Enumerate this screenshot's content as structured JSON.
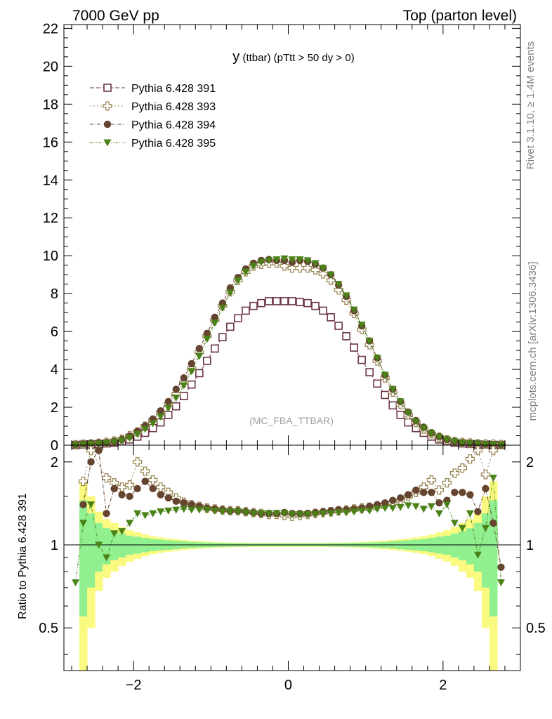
{
  "header": {
    "left_title": "7000 GeV pp",
    "right_title": "Top (parton level)"
  },
  "chart_data": [
    {
      "type": "scatter",
      "title": "y (ttbar) (pTtt > 50 dy > 0)",
      "title_main": "y",
      "title_rest": " (ttbar) (pTtt > 50 dy > 0)",
      "watermark": "(MC_FBA_TTBAR)",
      "xlim": [
        -2.9,
        3.0
      ],
      "ylim": [
        0,
        22.2
      ],
      "yticks": [
        0,
        2,
        4,
        6,
        8,
        10,
        12,
        14,
        16,
        18,
        20,
        22
      ],
      "legend_position": "top-left",
      "x": [
        -2.75,
        -2.65,
        -2.55,
        -2.45,
        -2.35,
        -2.25,
        -2.15,
        -2.05,
        -1.95,
        -1.85,
        -1.75,
        -1.65,
        -1.55,
        -1.45,
        -1.35,
        -1.25,
        -1.15,
        -1.05,
        -0.95,
        -0.85,
        -0.75,
        -0.65,
        -0.55,
        -0.45,
        -0.35,
        -0.25,
        -0.15,
        -0.05,
        0.05,
        0.15,
        0.25,
        0.35,
        0.45,
        0.55,
        0.65,
        0.75,
        0.85,
        0.95,
        1.05,
        1.15,
        1.25,
        1.35,
        1.45,
        1.55,
        1.65,
        1.75,
        1.85,
        1.95,
        2.05,
        2.15,
        2.25,
        2.35,
        2.45,
        2.55,
        2.65,
        2.75
      ],
      "series": [
        {
          "name": "Pythia 6.428 391",
          "marker": "open-square",
          "color": "#6b3545",
          "values": [
            0.01,
            0.03,
            0.04,
            0.06,
            0.09,
            0.13,
            0.2,
            0.3,
            0.45,
            0.65,
            0.9,
            1.2,
            1.6,
            2.05,
            2.6,
            3.2,
            3.8,
            4.45,
            5.1,
            5.7,
            6.25,
            6.7,
            7.1,
            7.35,
            7.5,
            7.6,
            7.6,
            7.6,
            7.6,
            7.55,
            7.5,
            7.35,
            7.1,
            6.75,
            6.3,
            5.75,
            5.15,
            4.5,
            3.85,
            3.25,
            2.65,
            2.1,
            1.6,
            1.2,
            0.9,
            0.65,
            0.45,
            0.3,
            0.2,
            0.13,
            0.09,
            0.06,
            0.04,
            0.03,
            0.02,
            0.01
          ]
        },
        {
          "name": "Pythia 6.428 393",
          "marker": "open-cross",
          "color": "#9a8858",
          "values": [
            0.02,
            0.05,
            0.07,
            0.1,
            0.15,
            0.22,
            0.32,
            0.5,
            0.7,
            1.0,
            1.32,
            1.72,
            2.15,
            2.7,
            3.3,
            4.05,
            4.9,
            5.75,
            6.6,
            7.35,
            8.1,
            8.7,
            9.15,
            9.45,
            9.55,
            9.6,
            9.6,
            9.45,
            9.35,
            9.35,
            9.35,
            9.25,
            9.05,
            8.7,
            8.2,
            7.65,
            6.95,
            6.1,
            5.3,
            4.45,
            3.55,
            2.8,
            2.15,
            1.6,
            1.2,
            0.85,
            0.6,
            0.42,
            0.28,
            0.2,
            0.14,
            0.11,
            0.08,
            0.06,
            0.05,
            0.03
          ]
        },
        {
          "name": "Pythia 6.428 394",
          "marker": "filled-circle",
          "color": "#654430",
          "values": [
            0.02,
            0.06,
            0.09,
            0.12,
            0.14,
            0.2,
            0.31,
            0.48,
            0.74,
            1.02,
            1.38,
            1.81,
            2.3,
            2.95,
            3.55,
            4.3,
            5.1,
            5.9,
            6.75,
            7.5,
            8.3,
            8.85,
            9.3,
            9.6,
            9.75,
            9.8,
            9.75,
            9.75,
            9.65,
            9.75,
            9.7,
            9.55,
            9.35,
            9.0,
            8.45,
            7.85,
            7.1,
            6.3,
            5.5,
            4.6,
            3.7,
            2.95,
            2.3,
            1.75,
            1.3,
            0.95,
            0.65,
            0.45,
            0.3,
            0.2,
            0.13,
            0.1,
            0.07,
            0.05,
            0.03,
            0.02
          ]
        },
        {
          "name": "Pythia 6.428 395",
          "marker": "filled-triangle-down",
          "color": "#4a8218",
          "values": [
            0.01,
            0.04,
            0.06,
            0.08,
            0.11,
            0.17,
            0.25,
            0.38,
            0.58,
            0.85,
            1.15,
            1.5,
            1.95,
            2.5,
            3.15,
            3.9,
            4.7,
            5.6,
            6.45,
            7.25,
            8.05,
            8.7,
            9.15,
            9.45,
            9.65,
            9.75,
            9.8,
            9.85,
            9.8,
            9.8,
            9.75,
            9.6,
            9.35,
            9.0,
            8.5,
            7.9,
            7.15,
            6.35,
            5.5,
            4.6,
            3.7,
            2.95,
            2.3,
            1.7,
            1.25,
            0.9,
            0.62,
            0.43,
            0.29,
            0.19,
            0.13,
            0.09,
            0.06,
            0.04,
            0.03,
            0.01
          ]
        }
      ]
    },
    {
      "type": "scatter",
      "ylabel": "Ratio to Pythia 6.428 391",
      "xlim": [
        -2.9,
        3.0
      ],
      "ylim": [
        0.35,
        2.3
      ],
      "log_y": true,
      "yticks": [
        0.5,
        1,
        2
      ],
      "xticks": [
        -2,
        0,
        2
      ],
      "reference_line": 1,
      "uncertainty_bands": {
        "x_edges": [
          -2.7,
          -2.6,
          -2.5,
          -2.4,
          -2.3,
          -2.2,
          -2.1,
          -2.0,
          -1.9,
          -1.8,
          -1.7,
          -1.6,
          -1.5,
          -1.4,
          -1.3,
          -1.2,
          -1.1,
          -1.0,
          -0.9,
          -0.8,
          -0.7,
          -0.6,
          -0.5,
          -0.4,
          -0.3,
          -0.2,
          -0.1,
          0.0,
          0.1,
          0.2,
          0.3,
          0.4,
          0.5,
          0.6,
          0.7,
          0.8,
          0.9,
          1.0,
          1.1,
          1.2,
          1.3,
          1.4,
          1.5,
          1.6,
          1.7,
          1.8,
          1.9,
          2.0,
          2.1,
          2.2,
          2.3,
          2.4,
          2.5,
          2.6,
          2.7
        ],
        "green_halfwidth": [
          0.45,
          0.3,
          0.2,
          0.15,
          0.12,
          0.1,
          0.08,
          0.07,
          0.06,
          0.05,
          0.045,
          0.04,
          0.035,
          0.03,
          0.025,
          0.022,
          0.02,
          0.018,
          0.016,
          0.015,
          0.014,
          0.013,
          0.012,
          0.012,
          0.012,
          0.012,
          0.012,
          0.012,
          0.012,
          0.012,
          0.012,
          0.012,
          0.013,
          0.014,
          0.015,
          0.016,
          0.018,
          0.02,
          0.022,
          0.025,
          0.03,
          0.035,
          0.04,
          0.045,
          0.05,
          0.06,
          0.07,
          0.08,
          0.1,
          0.12,
          0.15,
          0.2,
          0.3,
          0.45
        ],
        "yellow_halfwidth": [
          0.7,
          0.5,
          0.32,
          0.24,
          0.2,
          0.16,
          0.13,
          0.11,
          0.09,
          0.075,
          0.065,
          0.055,
          0.048,
          0.042,
          0.036,
          0.032,
          0.028,
          0.025,
          0.022,
          0.02,
          0.019,
          0.018,
          0.017,
          0.017,
          0.017,
          0.017,
          0.017,
          0.017,
          0.017,
          0.017,
          0.017,
          0.017,
          0.018,
          0.019,
          0.02,
          0.022,
          0.025,
          0.028,
          0.032,
          0.036,
          0.042,
          0.048,
          0.055,
          0.065,
          0.075,
          0.09,
          0.11,
          0.13,
          0.16,
          0.2,
          0.24,
          0.32,
          0.5,
          0.7
        ],
        "green_color": "#90f090",
        "yellow_color": "#fafa80"
      },
      "series": [
        {
          "name": "Pythia 6.428 393",
          "marker": "open-cross",
          "color": "#9a8858",
          "values": [
            null,
            1.7,
            2.2,
            null,
            1.75,
            1.68,
            1.62,
            1.65,
            2.0,
            1.85,
            1.72,
            1.62,
            1.55,
            1.48,
            1.43,
            1.4,
            1.38,
            1.36,
            1.35,
            1.34,
            1.33,
            1.33,
            1.32,
            1.31,
            1.3,
            1.29,
            1.29,
            1.28,
            1.27,
            1.28,
            1.29,
            1.3,
            1.31,
            1.32,
            1.33,
            1.34,
            1.35,
            1.36,
            1.37,
            1.38,
            1.4,
            1.42,
            1.45,
            1.5,
            1.55,
            1.62,
            1.72,
            1.58,
            1.68,
            1.82,
            1.9,
            2.05,
            2.2,
            1.8,
            2.2,
            null
          ]
        },
        {
          "name": "Pythia 6.428 394",
          "marker": "filled-circle",
          "color": "#654430",
          "values": [
            null,
            1.4,
            2.0,
            2.2,
            1.3,
            1.6,
            1.52,
            1.5,
            1.6,
            1.7,
            1.6,
            1.52,
            1.48,
            1.44,
            1.42,
            1.4,
            1.38,
            1.36,
            1.35,
            1.34,
            1.33,
            1.33,
            1.32,
            1.31,
            1.3,
            1.3,
            1.3,
            1.31,
            1.3,
            1.3,
            1.3,
            1.31,
            1.32,
            1.33,
            1.34,
            1.34,
            1.35,
            1.36,
            1.38,
            1.4,
            1.42,
            1.45,
            1.48,
            1.52,
            1.58,
            1.55,
            1.55,
            1.42,
            1.45,
            1.55,
            1.55,
            1.52,
            1.32,
            1.6,
            1.2,
            0.83
          ]
        },
        {
          "name": "Pythia 6.428 395",
          "marker": "filled-triangle-down",
          "color": "#4a8218",
          "values": [
            0.73,
            1.2,
            1.4,
            1.0,
            0.9,
            1.1,
            1.12,
            1.2,
            1.3,
            1.28,
            1.3,
            1.32,
            1.33,
            1.34,
            1.35,
            1.34,
            1.34,
            1.34,
            1.33,
            1.32,
            1.32,
            1.32,
            1.31,
            1.3,
            1.3,
            1.3,
            1.3,
            1.3,
            1.29,
            1.29,
            1.29,
            1.29,
            1.3,
            1.3,
            1.31,
            1.31,
            1.32,
            1.33,
            1.33,
            1.35,
            1.36,
            1.36,
            1.37,
            1.39,
            1.38,
            1.35,
            1.38,
            1.3,
            1.4,
            1.2,
            1.15,
            1.3,
            0.92,
            1.15,
            1.75,
            0.73
          ]
        }
      ]
    }
  ],
  "side_labels": {
    "rivet": "Rivet 3.1.10, ≥ 1.4M events",
    "mcplots": "mcplots.cern.ch [arXiv:1306.3436]"
  },
  "colors": {
    "axis": "#000000",
    "side_text": "#808080",
    "watermark": "#a0a0a0"
  }
}
